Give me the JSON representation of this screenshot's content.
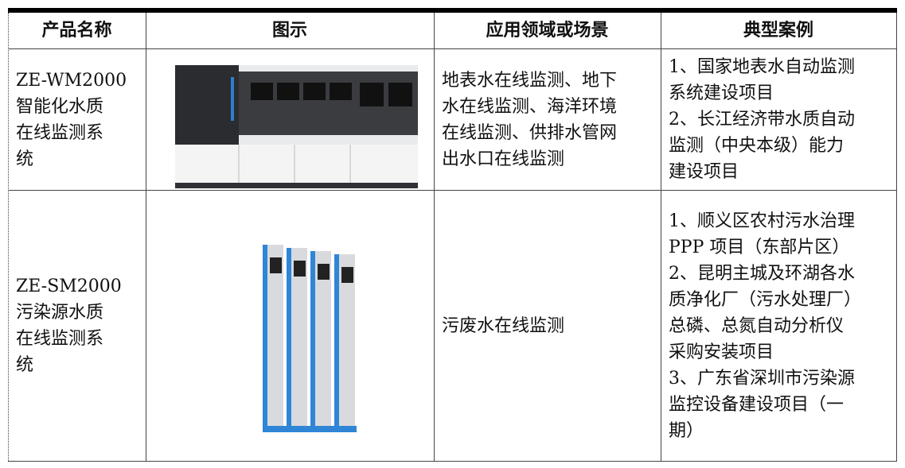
{
  "table": {
    "header": [
      "产品名称",
      "图示",
      "应用领域或场景",
      "典型案例"
    ],
    "rows": [
      {
        "product": [
          "ZE-WM2000",
          "智能化水质",
          "在线监测系",
          "统"
        ],
        "application": [
          "地表水在线监测、地下",
          "水在线监测、海洋环境",
          "在线监测、供排水管网",
          "出水口在线监测"
        ],
        "cases": [
          "1、国家地表水自动监测",
          "系统建设项目",
          "2、长江经济带水质自动",
          "监测（中央本级）能力",
          "建设项目"
        ]
      },
      {
        "product": [
          "ZE-SM2000",
          "污染源水质",
          "在线监测系",
          "统"
        ],
        "application": [
          "污废水在线监测"
        ],
        "cases": [
          "1、顺义区农村污水治理",
          "PPP 项目（东部片区）",
          "2、昆明主城及环湖各水",
          "质净化厂（污水处理厂）",
          "总磷、总氮自动分析仪",
          "采购安装项目",
          "3、广东省深圳市污染源",
          "监控设备建设项目（一",
          "期）"
        ]
      }
    ]
  }
}
